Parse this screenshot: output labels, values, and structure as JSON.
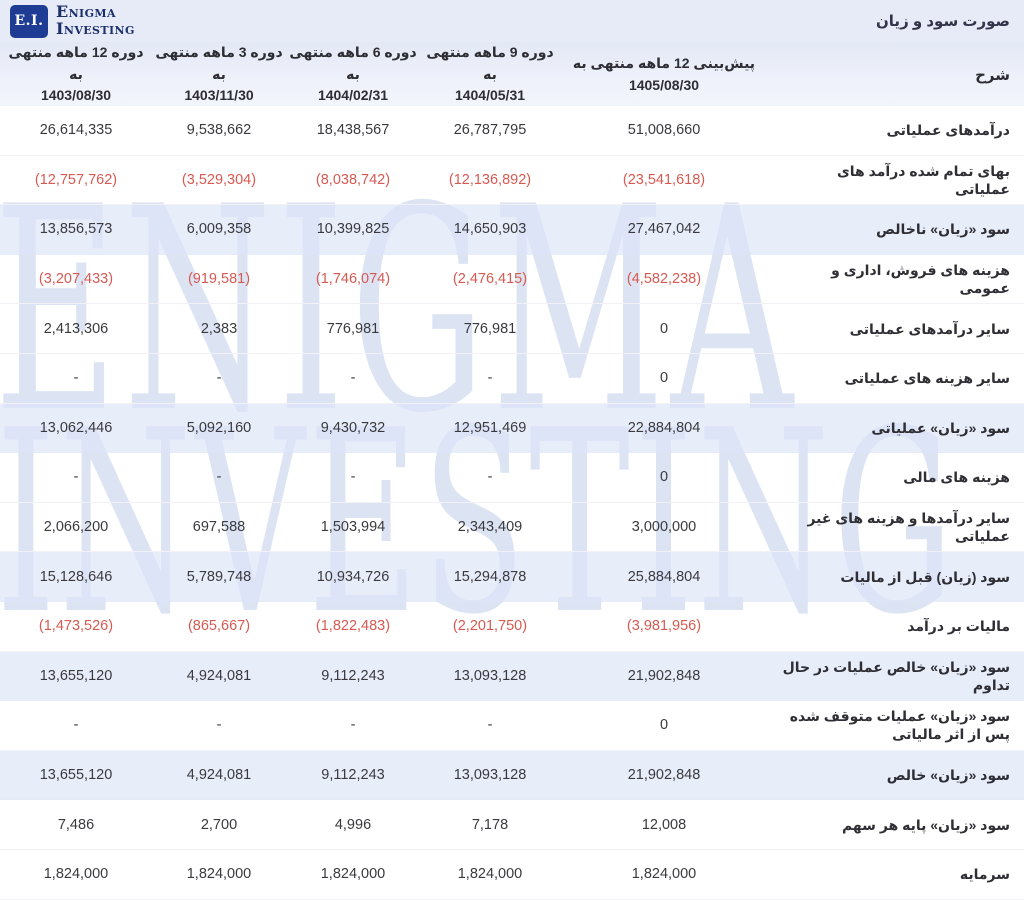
{
  "header": {
    "title": "صورت سود و زیان"
  },
  "brand": {
    "logo_abbr": "E.I.",
    "name_line1": "Enigma",
    "name_line2": "Investing"
  },
  "watermark": {
    "line1": "ENIGMA",
    "line2": "INVESTING"
  },
  "colors": {
    "topbar_bg": "#e7ebf7",
    "header_row_bg": "#e9edf8",
    "highlight_row_bg": "#e3eaf7",
    "negative_value": "#d75a52",
    "brand_navy": "#1b2f6b",
    "logo_bg": "#1e3c94",
    "watermark_blue": "#dce4f4"
  },
  "table": {
    "desc_header": "شرح",
    "columns": [
      {
        "label": "پیش‌بینی 12 ماهه منتهی به",
        "date": "1405/08/30"
      },
      {
        "label": "دوره 9 ماهه منتهی به",
        "date": "1404/05/31"
      },
      {
        "label": "دوره 6 ماهه منتهی به",
        "date": "1404/02/31"
      },
      {
        "label": "دوره 3 ماهه منتهی به",
        "date": "1403/11/30"
      },
      {
        "label": "دوره 12 ماهه منتهی به",
        "date": "1403/08/30"
      }
    ],
    "rows": [
      {
        "label": "درآمدهای عملیاتی",
        "highlight": false,
        "negative": false,
        "values": [
          "51,008,660",
          "26,787,795",
          "18,438,567",
          "9,538,662",
          "26,614,335"
        ]
      },
      {
        "label": "بهای تمام شده درآمد های عملیاتی",
        "highlight": false,
        "negative": true,
        "values": [
          "(23,541,618)",
          "(12,136,892)",
          "(8,038,742)",
          "(3,529,304)",
          "(12,757,762)"
        ]
      },
      {
        "label": "سود «زیان» ناخالص",
        "highlight": true,
        "negative": false,
        "values": [
          "27,467,042",
          "14,650,903",
          "10,399,825",
          "6,009,358",
          "13,856,573"
        ]
      },
      {
        "label": "هزینه های فروش، اداری و عمومی",
        "highlight": false,
        "negative": true,
        "values": [
          "(4,582,238)",
          "(2,476,415)",
          "(1,746,074)",
          "(919,581)",
          "(3,207,433)"
        ]
      },
      {
        "label": "سایر درآمدهای عملیاتی",
        "highlight": false,
        "negative": false,
        "values": [
          "0",
          "776,981",
          "776,981",
          "2,383",
          "2,413,306"
        ]
      },
      {
        "label": "سایر هزینه های عملیاتی",
        "highlight": false,
        "negative": false,
        "values": [
          "0",
          "-",
          "-",
          "-",
          "-"
        ]
      },
      {
        "label": "سود «زیان» عملیاتی",
        "highlight": true,
        "negative": false,
        "values": [
          "22,884,804",
          "12,951,469",
          "9,430,732",
          "5,092,160",
          "13,062,446"
        ]
      },
      {
        "label": "هزینه های مالی",
        "highlight": false,
        "negative": false,
        "values": [
          "0",
          "-",
          "-",
          "-",
          "-"
        ]
      },
      {
        "label": "سایر درآمدها و هزینه های غیر عملیاتی",
        "highlight": false,
        "negative": false,
        "values": [
          "3,000,000",
          "2,343,409",
          "1,503,994",
          "697,588",
          "2,066,200"
        ]
      },
      {
        "label": "سود (زیان) قبل از مالیات",
        "highlight": true,
        "negative": false,
        "values": [
          "25,884,804",
          "15,294,878",
          "10,934,726",
          "5,789,748",
          "15,128,646"
        ]
      },
      {
        "label": "مالیات بر درآمد",
        "highlight": false,
        "negative": true,
        "values": [
          "(3,981,956)",
          "(2,201,750)",
          "(1,822,483)",
          "(865,667)",
          "(1,473,526)"
        ]
      },
      {
        "label": "سود «زیان» خالص عملیات در حال تداوم",
        "highlight": true,
        "negative": false,
        "values": [
          "21,902,848",
          "13,093,128",
          "9,112,243",
          "4,924,081",
          "13,655,120"
        ]
      },
      {
        "label": "سود «زیان» عملیات متوقف شده پس از اثر مالیاتی",
        "highlight": false,
        "negative": false,
        "values": [
          "0",
          "-",
          "-",
          "-",
          "-"
        ]
      },
      {
        "label": "سود «زیان» خالص",
        "highlight": true,
        "negative": false,
        "values": [
          "21,902,848",
          "13,093,128",
          "9,112,243",
          "4,924,081",
          "13,655,120"
        ]
      },
      {
        "label": "سود «زیان» پایه هر سهم",
        "highlight": false,
        "negative": false,
        "values": [
          "12,008",
          "7,178",
          "4,996",
          "2,700",
          "7,486"
        ]
      },
      {
        "label": "سرمایه",
        "highlight": false,
        "negative": false,
        "values": [
          "1,824,000",
          "1,824,000",
          "1,824,000",
          "1,824,000",
          "1,824,000"
        ]
      }
    ]
  }
}
